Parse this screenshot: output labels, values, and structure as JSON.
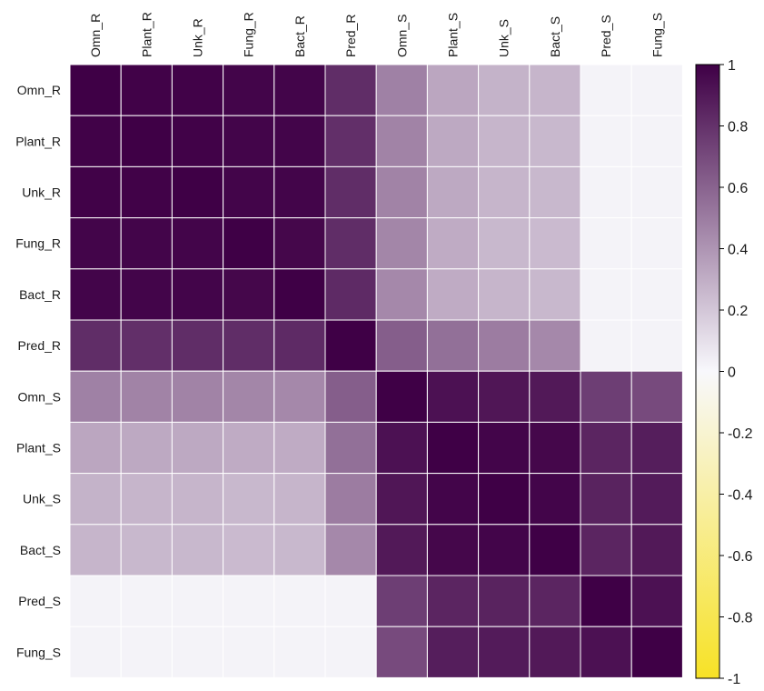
{
  "chart_data": {
    "type": "heatmap",
    "rows": [
      "Omn_R",
      "Plant_R",
      "Unk_R",
      "Fung_R",
      "Bact_R",
      "Pred_R",
      "Omn_S",
      "Plant_S",
      "Unk_S",
      "Bact_S",
      "Pred_S",
      "Fung_S"
    ],
    "columns": [
      "Omn_R",
      "Plant_R",
      "Unk_R",
      "Fung_R",
      "Bact_R",
      "Pred_R",
      "Omn_S",
      "Plant_S",
      "Unk_S",
      "Bact_S",
      "Pred_S",
      "Fung_S"
    ],
    "values": [
      [
        1.0,
        0.99,
        0.99,
        0.98,
        0.98,
        0.82,
        0.48,
        0.33,
        0.28,
        0.27,
        0.02,
        0.02
      ],
      [
        0.99,
        1.0,
        0.99,
        0.98,
        0.98,
        0.81,
        0.47,
        0.32,
        0.27,
        0.26,
        0.02,
        0.02
      ],
      [
        0.99,
        0.99,
        1.0,
        0.98,
        0.98,
        0.82,
        0.47,
        0.32,
        0.27,
        0.26,
        0.02,
        0.02
      ],
      [
        0.98,
        0.98,
        0.98,
        1.0,
        0.97,
        0.82,
        0.46,
        0.31,
        0.26,
        0.25,
        0.02,
        0.02
      ],
      [
        0.98,
        0.98,
        0.98,
        0.97,
        1.0,
        0.83,
        0.45,
        0.31,
        0.27,
        0.26,
        0.02,
        0.02
      ],
      [
        0.82,
        0.81,
        0.82,
        0.82,
        0.83,
        1.0,
        0.62,
        0.55,
        0.5,
        0.45,
        0.02,
        0.02
      ],
      [
        0.48,
        0.47,
        0.47,
        0.46,
        0.45,
        0.62,
        1.0,
        0.93,
        0.91,
        0.9,
        0.75,
        0.7
      ],
      [
        0.33,
        0.32,
        0.32,
        0.31,
        0.31,
        0.55,
        0.93,
        1.0,
        0.98,
        0.97,
        0.85,
        0.88
      ],
      [
        0.28,
        0.27,
        0.27,
        0.26,
        0.27,
        0.5,
        0.91,
        0.98,
        1.0,
        0.98,
        0.86,
        0.89
      ],
      [
        0.27,
        0.26,
        0.26,
        0.25,
        0.26,
        0.45,
        0.9,
        0.97,
        0.98,
        1.0,
        0.85,
        0.9
      ],
      [
        0.02,
        0.02,
        0.02,
        0.02,
        0.02,
        0.02,
        0.75,
        0.85,
        0.86,
        0.85,
        1.0,
        0.93
      ],
      [
        0.02,
        0.02,
        0.02,
        0.02,
        0.02,
        0.02,
        0.7,
        0.88,
        0.89,
        0.9,
        0.93,
        1.0
      ]
    ],
    "colorbar": {
      "min": -1,
      "max": 1,
      "ticks": [
        "1",
        "0.8",
        "0.6",
        "0.4",
        "0.2",
        "0",
        "-0.2",
        "-0.4",
        "-0.6",
        "-0.8",
        "-1"
      ],
      "tick_values": [
        1,
        0.8,
        0.6,
        0.4,
        0.2,
        0,
        -0.2,
        -0.4,
        -0.6,
        -0.8,
        -1
      ]
    },
    "colors": {
      "positive_max": "#3f0046",
      "zero": "#f8f8fc",
      "negative_max": "#f7e226",
      "cell_border": "#ffffff"
    },
    "grid": true,
    "legend_position": "right"
  }
}
